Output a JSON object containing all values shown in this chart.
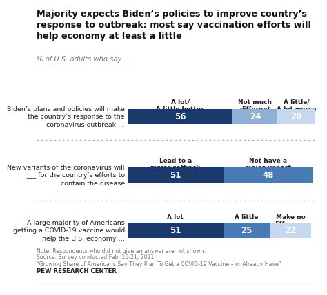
{
  "title": "Majority expects Biden’s policies to improve country’s\nresponse to outbreak; most say vaccination efforts will\nhelp economy at least a little",
  "subtitle": "% of U.S. adults who say …",
  "rows": [
    {
      "label": "Biden’s plans and policies will make\nthe country’s response to the\ncoronavirus outbreak …",
      "col_labels": [
        "A lot/\nA little better",
        "Not much\ndifferent",
        "A little/\nA lot worse"
      ],
      "values": [
        56,
        24,
        20
      ],
      "colors": [
        "#1a3a6b",
        "#8fafd4",
        "#c5d8ee"
      ]
    },
    {
      "label": "New variants of the coronavirus will\n___ for the country’s efforts to\ncontain the disease",
      "col_labels": [
        "Lead to a\nmajor setback",
        "Not have a\nmajor impact"
      ],
      "values": [
        51,
        48
      ],
      "colors": [
        "#1a3a6b",
        "#4a7ab5"
      ]
    },
    {
      "label": "A large majority of Americans\ngetting a COVID-19 vaccine would\nhelp the U.S. economy …",
      "col_labels": [
        "A lot",
        "A little",
        "Make no\ndifference"
      ],
      "values": [
        51,
        25,
        22
      ],
      "colors": [
        "#1a3a6b",
        "#4a7ab5",
        "#c5d8ee"
      ]
    }
  ],
  "note_lines": [
    "Note: Respondents who did not give an answer are not shown.",
    "Source: Survey conducted Feb. 16-21, 2021.",
    "“Growing Share of Americans Say They Plan To Get a COVID-19 Vaccine – or Already Have”"
  ],
  "pew": "PEW RESEARCH CENTER",
  "bg_color": "#ffffff"
}
